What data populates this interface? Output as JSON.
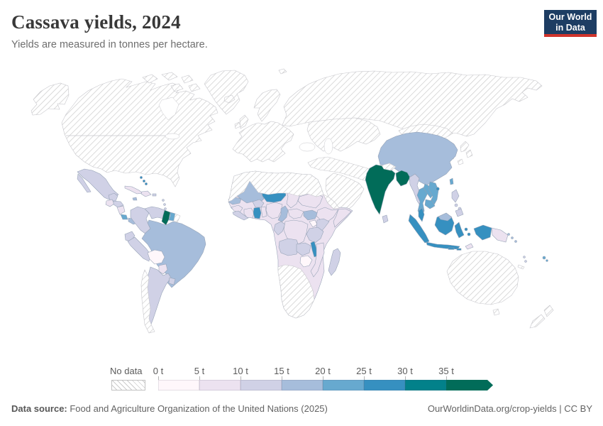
{
  "header": {
    "title": "Cassava yields, 2024",
    "subtitle": "Yields are measured in tonnes per hectare.",
    "logo_line1": "Our World",
    "logo_line2": "in Data",
    "logo_bg": "#1d3d63",
    "logo_red": "#d0342c"
  },
  "legend": {
    "no_data_label": "No data",
    "tick_labels": [
      "0 t",
      "5 t",
      "10 t",
      "15 t",
      "20 t",
      "25 t",
      "30 t",
      "35 t"
    ],
    "colors": [
      "#fff7fb",
      "#ece2f0",
      "#d0d1e6",
      "#a6bddb",
      "#67a9cf",
      "#3690c0",
      "#02818a",
      "#016c59"
    ]
  },
  "footer": {
    "source_label": "Data source:",
    "source_text": " Food and Agriculture Organization of the United Nations (2025)",
    "credit_text": "OurWorldinData.org/crop-yields | CC BY"
  },
  "chart_data": {
    "type": "choropleth_world_map",
    "title": "Cassava yields, 2024",
    "unit": "tonnes per hectare",
    "year": 2024,
    "legend_position": "bottom",
    "bins": [
      {
        "label": "0-5 t",
        "color": "#fff7fb"
      },
      {
        "label": "5-10 t",
        "color": "#ece2f0"
      },
      {
        "label": "10-15 t",
        "color": "#d0d1e6"
      },
      {
        "label": "15-20 t",
        "color": "#a6bddb"
      },
      {
        "label": "20-25 t",
        "color": "#67a9cf"
      },
      {
        "label": "25-30 t",
        "color": "#3690c0"
      },
      {
        "label": "30-35 t",
        "color": "#02818a"
      },
      {
        "label": "35+ t",
        "color": "#016c59"
      },
      {
        "label": "No data",
        "color": "hatch"
      }
    ],
    "countries": {
      "India": "35+ t",
      "Bangladesh": "35+ t",
      "Guyana": "35+ t",
      "Niger": "25-30 t",
      "Ghana": "25-30 t",
      "Indonesia": "25-30 t",
      "Malaysia": "25-30 t",
      "Malawi": "25-30 t",
      "Bahamas": "25-30 t",
      "Thailand": "20-25 t",
      "Laos": "20-25 t",
      "Vietnam": "20-25 t",
      "Cambodia": "20-25 t",
      "Suriname": "20-25 t",
      "Costa Rica": "20-25 t",
      "Taiwan": "20-25 t",
      "Fiji": "20-25 t",
      "China": "15-20 t",
      "Brazil": "15-20 t",
      "Mali": "15-20 t",
      "Senegal": "15-20 t",
      "Cameroon": "15-20 t",
      "South Sudan": "15-20 t",
      "Panama": "15-20 t",
      "Jamaica": "15-20 t",
      "Solomon Islands": "15-20 t",
      "Mexico": "10-15 t",
      "Honduras": "10-15 t",
      "Colombia": "10-15 t",
      "Venezuela": "10-15 t",
      "Ecuador": "10-15 t",
      "Peru": "10-15 t",
      "Argentina": "10-15 t",
      "Uruguay": "10-15 t",
      "Burkina Faso": "10-15 t",
      "Sierra Leone": "10-15 t",
      "Kenya": "10-15 t",
      "Tanzania": "10-15 t",
      "Angola": "10-15 t",
      "Zambia": "10-15 t",
      "Congo": "10-15 t",
      "Madagascar": "10-15 t",
      "Myanmar": "10-15 t",
      "Philippines": "10-15 t",
      "Sri Lanka": "10-15 t",
      "Guatemala": "5-10 t",
      "Nicaragua": "5-10 t",
      "Cuba": "5-10 t",
      "Haiti": "5-10 t",
      "Nigeria": "5-10 t",
      "Cote d'Ivoire": "5-10 t",
      "Guinea": "5-10 t",
      "Togo": "5-10 t",
      "Benin": "5-10 t",
      "Chad": "5-10 t",
      "Sudan": "5-10 t",
      "Ethiopia": "5-10 t",
      "Somalia": "5-10 t",
      "Central African Republic": "5-10 t",
      "DR Congo": "5-10 t",
      "Mozambique": "5-10 t",
      "Papua New Guinea": "5-10 t",
      "Paraguay": "5-10 t",
      "Timor": "5-10 t",
      "Bolivia": "0-5 t",
      "Zimbabwe": "0-5 t",
      "Uganda": "0-5 t",
      "United States": "No data",
      "Canada": "No data",
      "Greenland": "No data",
      "Iceland": "No data",
      "Europe": "No data",
      "Russia": "No data",
      "Central Asia": "No data",
      "Middle East": "No data",
      "Pakistan": "No data",
      "Afghanistan": "No data",
      "Nepal": "No data",
      "Mongolia": "No data",
      "Japan": "No data",
      "South Korea": "No data",
      "North Korea": "No data",
      "Morocco": "No data",
      "Algeria": "No data",
      "Libya": "No data",
      "Egypt": "No data",
      "Mauritania": "No data",
      "Eritrea": "No data",
      "Namibia": "No data",
      "Botswana": "No data",
      "South Africa": "No data",
      "Chile": "No data",
      "French Guiana": "No data",
      "Australia": "No data",
      "New Zealand": "No data",
      "New Caledonia": "No data"
    },
    "country_fills": {
      "greenland": "hatch",
      "iceland": "hatch",
      "alaska": "hatch",
      "canada-usa": "hatch",
      "arctic-1": "hatch",
      "arctic-2": "hatch",
      "arctic-3": "hatch",
      "arctic-4": "hatch",
      "arctic-5": "hatch",
      "svalbard": "hatch",
      "scandinavia": "hatch",
      "uk": "hatch",
      "ireland": "hatch",
      "europe-mainland": "hatch",
      "russia": "hatch",
      "central-asia": "hatch",
      "mongolia": "hatch",
      "middle-east": "hatch",
      "arabia": "hatch",
      "nepal": "hatch",
      "korea": "hatch",
      "japan-1": "hatch",
      "japan-2": "hatch",
      "japan-3": "hatch",
      "north-africa": "hatch",
      "eritrea": "hatch",
      "southern-africa": "hatch",
      "chile": "hatch",
      "french-guiana": "hatch",
      "australia": "hatch",
      "tasmania": "hatch",
      "nz-north": "hatch",
      "nz-south": "hatch",
      "new-caledonia": "hatch",
      "mexico": "#d0d1e6",
      "baja": "#d0d1e6",
      "yucatan": "#d0d1e6",
      "guatemala": "#ece2f0",
      "honduras": "#d0d1e6",
      "nicaragua": "#ece2f0",
      "costa-rica": "#67a9cf",
      "panama": "#a6bddb",
      "cuba": "#ece2f0",
      "hispaniola": "#ece2f0",
      "jamaica": "#a6bddb",
      "bahamas": "#3690c0",
      "puerto-rico": "#d0d1e6",
      "antilles": "#d0d1e6",
      "trinidad": "#a6bddb",
      "colombia": "#d0d1e6",
      "venezuela": "#d0d1e6",
      "guyana": "#016c59",
      "suriname": "#67a9cf",
      "ecuador": "#d0d1e6",
      "peru": "#d0d1e6",
      "brazil": "#a6bddb",
      "bolivia": "#fff7fb",
      "paraguay": "#ece2f0",
      "argentina": "#d0d1e6",
      "uruguay": "#d0d1e6",
      "africa-other": "#ece2f0",
      "senegal": "#a6bddb",
      "mali": "#a6bddb",
      "niger": "#3690c0",
      "chad": "#ece2f0",
      "sudan": "#ece2f0",
      "burkina": "#d0d1e6",
      "guinea": "#ece2f0",
      "sierra-leone": "#d0d1e6",
      "cote-divoire": "#ece2f0",
      "ghana": "#3690c0",
      "togo-benin": "#ece2f0",
      "nigeria": "#ece2f0",
      "cameroon": "#a6bddb",
      "car": "#ece2f0",
      "south-sudan": "#a6bddb",
      "ethiopia": "#ece2f0",
      "somalia": "#ece2f0",
      "uganda": "#fff7fb",
      "kenya": "#d0d1e6",
      "gabon-congo": "#d0d1e6",
      "drc": "#ece2f0",
      "tanzania": "#d0d1e6",
      "angola": "#d0d1e6",
      "zambia": "#d0d1e6",
      "malawi": "#3690c0",
      "mozambique": "#ece2f0",
      "zimbabwe": "#fff7fb",
      "madagascar": "#d0d1e6",
      "china": "#a6bddb",
      "india": "#016c59",
      "bangladesh": "#016c59",
      "sri-lanka": "#d0d1e6",
      "myanmar": "#d0d1e6",
      "thailand": "#67a9cf",
      "laos": "#67a9cf",
      "vietnam": "#67a9cf",
      "cambodia": "#67a9cf",
      "malay-peninsula": "#3690c0",
      "sumatra": "#3690c0",
      "java": "#3690c0",
      "borneo": "#3690c0",
      "borneo-north": "#a6bddb",
      "sulawesi": "#3690c0",
      "maluku": "#3690c0",
      "lesser-sunda": "#3690c0",
      "west-papua": "#3690c0",
      "png": "#ece2f0",
      "timor": "#ece2f0",
      "philippines": "#d0d1e6",
      "taiwan": "#67a9cf",
      "hainan": "#3690c0",
      "solomon": "#a6bddb",
      "vanuatu": "#d0d1e6",
      "fiji": "#67a9cf"
    }
  }
}
